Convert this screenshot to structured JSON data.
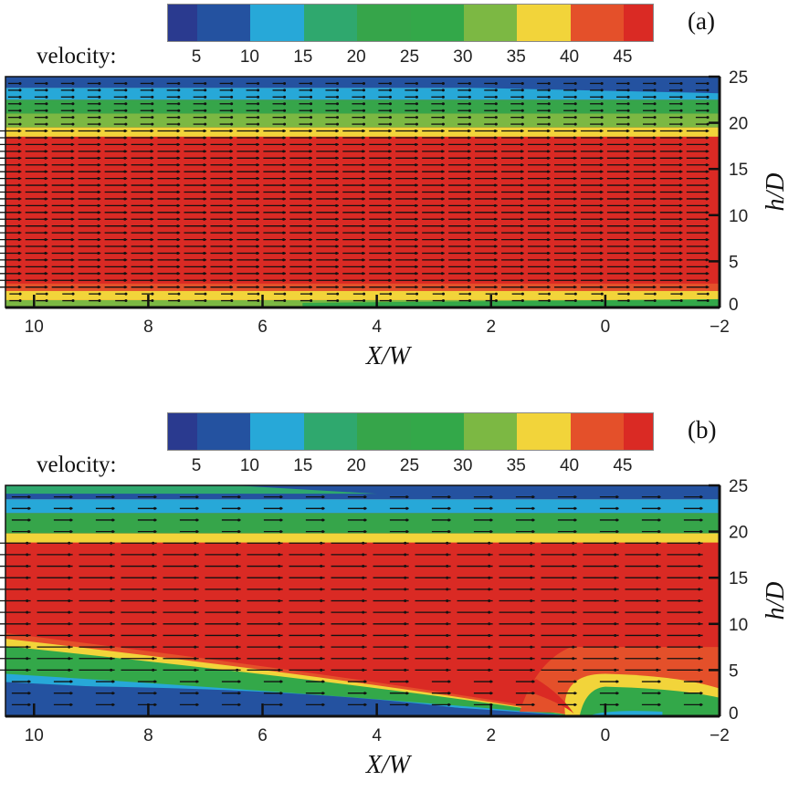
{
  "colorbar": {
    "label": "velocity:",
    "ticks": [
      "5",
      "10",
      "15",
      "20",
      "25",
      "30",
      "35",
      "40",
      "45"
    ],
    "colors": [
      "#2a3a8f",
      "#2452a0",
      "#27a8d8",
      "#2fa86e",
      "#36a54a",
      "#33a849",
      "#7cb843",
      "#f2d43a",
      "#e4502a",
      "#da2a24"
    ]
  },
  "chart_data": [
    {
      "type": "heatmap",
      "panel_label": "(a)",
      "title": "",
      "xlabel": "X/W",
      "ylabel": "h/D",
      "xlim": [
        10.5,
        -2
      ],
      "ylim": [
        0,
        25
      ],
      "xticks": [
        "10",
        "8",
        "6",
        "4",
        "2",
        "0",
        "-2"
      ],
      "yticks": [
        "0",
        "5",
        "10",
        "15",
        "20",
        "25"
      ],
      "colorbar_levels": [
        5,
        10,
        15,
        20,
        25,
        30,
        35,
        40,
        45
      ],
      "field": "velocity",
      "bands": [
        {
          "h_from": 0,
          "h_to": 0.8,
          "velocity": 30,
          "note": "green near wall (x<5)"
        },
        {
          "h_from": 0.8,
          "h_to": 1.8,
          "velocity": 37
        },
        {
          "h_from": 1.8,
          "h_to": 2.6,
          "velocity": 42
        },
        {
          "h_from": 2.6,
          "h_to": 18.5,
          "velocity": 47
        },
        {
          "h_from": 18.5,
          "h_to": 19.5,
          "velocity": 37
        },
        {
          "h_from": 19.5,
          "h_to": 21.0,
          "velocity": 30
        },
        {
          "h_from": 21.0,
          "h_to": 22.5,
          "velocity": 22
        },
        {
          "h_from": 22.5,
          "h_to": 23.8,
          "velocity": 12
        },
        {
          "h_from": 23.8,
          "h_to": 25,
          "velocity": 6
        }
      ],
      "vectors": {
        "direction": "negative-x",
        "rows": 33,
        "cols": 27
      }
    },
    {
      "type": "heatmap",
      "panel_label": "(b)",
      "title": "",
      "xlabel": "X/W",
      "ylabel": "h/D",
      "xlim": [
        10.5,
        -2
      ],
      "ylim": [
        0,
        25
      ],
      "xticks": [
        "10",
        "8",
        "6",
        "4",
        "2",
        "0",
        "-2"
      ],
      "yticks": [
        "0",
        "5",
        "10",
        "15",
        "20",
        "25"
      ],
      "colorbar_levels": [
        5,
        10,
        15,
        20,
        25,
        30,
        35,
        40,
        45
      ],
      "field": "velocity",
      "bands": [
        {
          "region": "top",
          "h_from": 23.5,
          "h_to": 25,
          "velocity": 6
        },
        {
          "region": "top",
          "h_from": 22.0,
          "h_to": 23.5,
          "velocity": 12
        },
        {
          "region": "top",
          "h_from": 19.8,
          "h_to": 22.0,
          "velocity": 24
        },
        {
          "region": "top",
          "h_from": 18.8,
          "h_to": 19.8,
          "velocity": 37
        },
        {
          "region": "core",
          "h_from": 9.0,
          "h_to": 18.8,
          "velocity": 47
        },
        {
          "region": "shear-layer",
          "description": "yellow/green/blue layer descending from h/D≈9 at X/W=10.5 to h/D≈0 at X/W≈0.5"
        },
        {
          "region": "recirculation",
          "description": "yellow-bounded green bubble near X/W 0 to -2, h/D 0 to 4.5"
        }
      ],
      "vectors": {
        "direction": "negative-x",
        "rows": 19,
        "cols": 17
      }
    }
  ]
}
